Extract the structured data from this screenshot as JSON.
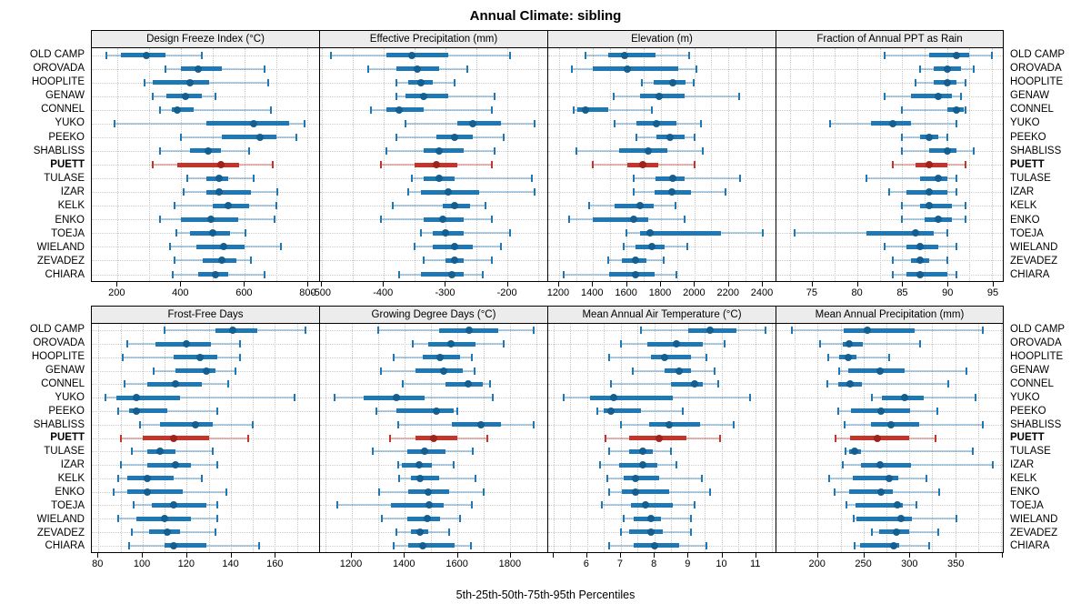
{
  "title": "Annual Climate: sibling",
  "caption": "5th-25th-50th-75th-95th Percentiles",
  "stations": [
    "OLD CAMP",
    "OROVADA",
    "HOOPLITE",
    "GENAW",
    "CONNEL",
    "YUKO",
    "PEEKO",
    "SHABLISS",
    "PUETT",
    "TULASE",
    "IZAR",
    "KELK",
    "ENKO",
    "TOEJA",
    "WIELAND",
    "ZEVADEZ",
    "CHIARA"
  ],
  "highlight_station": "PUETT",
  "colors": {
    "series_line": "#1f77b4",
    "series_pale": "rgba(31,119,180,0.35)",
    "series_dot": "#155f90",
    "highlight_line": "#c3352b",
    "highlight_pale": "rgba(195,53,43,0.35)",
    "highlight_dot": "#9e231b",
    "strip_bg": "#ececec",
    "grid": "#c8c8c8",
    "border": "#000000"
  },
  "chart_data": {
    "type": "trellis-percentile-dotplot",
    "percentiles": [
      5,
      25,
      50,
      75,
      95
    ],
    "legend_note": "thin pale line = 5th-95th, thick line = 25th-75th, dot = median",
    "panels": [
      {
        "id": "dfi",
        "row": 0,
        "title": "Design Freeze Index (°C)",
        "domain": [
          119,
          836
        ],
        "grid_step": 100,
        "ticks": [
          200,
          400,
          600,
          800
        ],
        "tick_labels": [
          "200",
          "400",
          "600",
          "800"
        ],
        "values": [
          [
            165,
            210,
            290,
            350,
            465
          ],
          [
            350,
            400,
            455,
            530,
            665
          ],
          [
            285,
            310,
            430,
            490,
            675
          ],
          [
            310,
            355,
            415,
            465,
            510
          ],
          [
            335,
            370,
            390,
            440,
            685
          ],
          [
            190,
            480,
            630,
            740,
            790
          ],
          [
            400,
            530,
            650,
            700,
            765
          ],
          [
            335,
            430,
            485,
            525,
            615
          ],
          [
            310,
            390,
            525,
            585,
            690
          ],
          [
            420,
            480,
            520,
            550,
            630
          ],
          [
            410,
            480,
            520,
            620,
            705
          ],
          [
            380,
            500,
            550,
            615,
            700
          ],
          [
            335,
            400,
            495,
            580,
            695
          ],
          [
            385,
            430,
            500,
            555,
            605
          ],
          [
            365,
            450,
            535,
            600,
            715
          ],
          [
            380,
            470,
            530,
            575,
            620
          ],
          [
            375,
            455,
            510,
            550,
            665
          ]
        ]
      },
      {
        "id": "effppt",
        "row": 0,
        "title": "Effective Precipitation (mm)",
        "domain": [
          -503,
          -135
        ],
        "grid_step": 50,
        "ticks": [
          -500,
          -400,
          -300,
          -200
        ],
        "tick_labels": [
          "-500",
          "-400",
          "-300",
          "-200"
        ],
        "values": [
          [
            -485,
            -395,
            -355,
            -295,
            -195
          ],
          [
            -425,
            -380,
            -345,
            -310,
            -265
          ],
          [
            -380,
            -360,
            -340,
            -320,
            -285
          ],
          [
            -380,
            -365,
            -335,
            -295,
            -220
          ],
          [
            -420,
            -395,
            -375,
            -335,
            -225
          ],
          [
            -365,
            -280,
            -255,
            -210,
            -155
          ],
          [
            -380,
            -315,
            -285,
            -255,
            -205
          ],
          [
            -395,
            -335,
            -310,
            -270,
            -220
          ],
          [
            -405,
            -350,
            -315,
            -280,
            -225
          ],
          [
            -355,
            -335,
            -310,
            -285,
            -160
          ],
          [
            -360,
            -340,
            -295,
            -245,
            -155
          ],
          [
            -385,
            -305,
            -285,
            -260,
            -235
          ],
          [
            -405,
            -335,
            -305,
            -270,
            -225
          ],
          [
            -340,
            -320,
            -300,
            -270,
            -195
          ],
          [
            -350,
            -320,
            -285,
            -255,
            -210
          ],
          [
            -335,
            -300,
            -285,
            -270,
            -225
          ],
          [
            -375,
            -340,
            -290,
            -270,
            -240
          ]
        ]
      },
      {
        "id": "elev",
        "row": 0,
        "title": "Elevation (m)",
        "domain": [
          1136,
          2480
        ],
        "grid_step": 100,
        "ticks": [
          1200,
          1400,
          1600,
          1800,
          2000,
          2200,
          2400
        ],
        "tick_labels": [
          "1200",
          "1400",
          "1600",
          "1800",
          "2000",
          "2200",
          "2400"
        ],
        "values": [
          [
            1355,
            1490,
            1590,
            1770,
            1970
          ],
          [
            1275,
            1400,
            1605,
            1905,
            2010
          ],
          [
            1690,
            1760,
            1875,
            1950,
            1995
          ],
          [
            1525,
            1680,
            1790,
            1940,
            2265
          ],
          [
            1285,
            1310,
            1355,
            1490,
            1750
          ],
          [
            1530,
            1655,
            1775,
            1895,
            2040
          ],
          [
            1660,
            1775,
            1855,
            1945,
            2000
          ],
          [
            1305,
            1555,
            1730,
            1840,
            2050
          ],
          [
            1400,
            1605,
            1695,
            1785,
            2000
          ],
          [
            1640,
            1770,
            1875,
            1945,
            2270
          ],
          [
            1640,
            1765,
            1865,
            1980,
            2185
          ],
          [
            1380,
            1530,
            1680,
            1760,
            1890
          ],
          [
            1260,
            1400,
            1640,
            1730,
            1940
          ],
          [
            1600,
            1680,
            1740,
            2160,
            2405
          ],
          [
            1580,
            1650,
            1750,
            1825,
            1960
          ],
          [
            1490,
            1570,
            1650,
            1715,
            1820
          ],
          [
            1225,
            1495,
            1650,
            1765,
            1895
          ]
        ]
      },
      {
        "id": "fracrain",
        "row": 0,
        "title": "Fraction of Annual PPT as Rain",
        "domain": [
          71,
          96.2
        ],
        "grid_step": 2.5,
        "ticks": [
          75,
          80,
          85,
          90,
          95
        ],
        "tick_labels": [
          "75",
          "80",
          "85",
          "90",
          "95"
        ],
        "values": [
          [
            83,
            88,
            91,
            92.5,
            95
          ],
          [
            87,
            88.5,
            90,
            91.5,
            93
          ],
          [
            86.5,
            88.5,
            90,
            91,
            92
          ],
          [
            83,
            86,
            89,
            90.5,
            91.5
          ],
          [
            85,
            90,
            91,
            91.8,
            92.1
          ],
          [
            77,
            81.5,
            84,
            86,
            91
          ],
          [
            85,
            87,
            88,
            89,
            90
          ],
          [
            85,
            88,
            90,
            91,
            93
          ],
          [
            84,
            86.5,
            88,
            90,
            92
          ],
          [
            81,
            87,
            89,
            90,
            91
          ],
          [
            83.5,
            85.5,
            88,
            90,
            91
          ],
          [
            85,
            87,
            88,
            90.5,
            92
          ],
          [
            85,
            87.5,
            89,
            90.5,
            92
          ],
          [
            73,
            81,
            86.5,
            88.5,
            90
          ],
          [
            83,
            85.5,
            87,
            89,
            91
          ],
          [
            84,
            86,
            87,
            88,
            90
          ],
          [
            84,
            85.5,
            87,
            90,
            91
          ]
        ]
      },
      {
        "id": "ffd",
        "row": 1,
        "title": "Frost-Free Days",
        "domain": [
          77,
          180
        ],
        "grid_step": 10,
        "ticks": [
          80,
          100,
          120,
          140,
          160
        ],
        "tick_labels": [
          "80",
          "100",
          "120",
          "140",
          "160"
        ],
        "values": [
          [
            110,
            133,
            141,
            152,
            174
          ],
          [
            93,
            106,
            120,
            131,
            144
          ],
          [
            91,
            114,
            126,
            134,
            144
          ],
          [
            105,
            115,
            129,
            133,
            142
          ],
          [
            92,
            102,
            115,
            127,
            139
          ],
          [
            83,
            88,
            97,
            117,
            169
          ],
          [
            89,
            94,
            97,
            111,
            134
          ],
          [
            99,
            108,
            124,
            132,
            150
          ],
          [
            90,
            100,
            114,
            130,
            148
          ],
          [
            95,
            102,
            108,
            115,
            132
          ],
          [
            90,
            102,
            115,
            122,
            134
          ],
          [
            89,
            93,
            102,
            114,
            127
          ],
          [
            87,
            93,
            102,
            118,
            138
          ],
          [
            96,
            104,
            114,
            129,
            134
          ],
          [
            89,
            97,
            110,
            122,
            134
          ],
          [
            95,
            103,
            111,
            117,
            133
          ],
          [
            94,
            110,
            114,
            129,
            153
          ]
        ]
      },
      {
        "id": "gdd",
        "row": 1,
        "title": "Growing Degree Days (°C)",
        "domain": [
          1080,
          1941
        ],
        "grid_step": 100,
        "ticks": [
          1200,
          1400,
          1600,
          1800
        ],
        "tick_labels": [
          "1200",
          "1400",
          "1600",
          "1800"
        ],
        "values": [
          [
            1300,
            1530,
            1645,
            1755,
            1890
          ],
          [
            1430,
            1490,
            1575,
            1670,
            1775
          ],
          [
            1360,
            1470,
            1535,
            1610,
            1655
          ],
          [
            1310,
            1440,
            1550,
            1620,
            1665
          ],
          [
            1395,
            1555,
            1640,
            1695,
            1725
          ],
          [
            1135,
            1245,
            1370,
            1475,
            1735
          ],
          [
            1295,
            1370,
            1520,
            1585,
            1600
          ],
          [
            1375,
            1580,
            1690,
            1765,
            1890
          ],
          [
            1345,
            1440,
            1510,
            1600,
            1715
          ],
          [
            1280,
            1410,
            1475,
            1555,
            1660
          ],
          [
            1375,
            1390,
            1455,
            1505,
            1585
          ],
          [
            1380,
            1425,
            1460,
            1530,
            1670
          ],
          [
            1305,
            1415,
            1490,
            1570,
            1700
          ],
          [
            1145,
            1350,
            1495,
            1550,
            1655
          ],
          [
            1315,
            1410,
            1485,
            1535,
            1610
          ],
          [
            1370,
            1425,
            1460,
            1490,
            1570
          ],
          [
            1360,
            1415,
            1470,
            1590,
            1650
          ]
        ]
      },
      {
        "id": "mat",
        "row": 1,
        "title": "Mean Annual Air Temperature (°C)",
        "domain": [
          4.85,
          11.6
        ],
        "grid_step": 0.5,
        "ticks": [
          5,
          6,
          7,
          8,
          9,
          10,
          11
        ],
        "tick_labels": [
          "",
          "6",
          "7",
          "8",
          "9",
          "10",
          "11"
        ],
        "values": [
          [
            7.6,
            9.0,
            9.65,
            10.45,
            11.3
          ],
          [
            7.0,
            7.8,
            8.65,
            9.45,
            10.1
          ],
          [
            6.65,
            7.9,
            8.3,
            9.1,
            9.55
          ],
          [
            7.35,
            8.3,
            8.75,
            9.1,
            9.8
          ],
          [
            6.7,
            8.5,
            9.2,
            9.45,
            9.9
          ],
          [
            5.3,
            6.1,
            6.8,
            8.55,
            10.85
          ],
          [
            6.3,
            6.5,
            6.7,
            7.6,
            8.85
          ],
          [
            7.0,
            7.85,
            8.45,
            9.35,
            10.35
          ],
          [
            6.55,
            7.25,
            8.15,
            8.95,
            9.95
          ],
          [
            6.65,
            7.25,
            7.65,
            7.95,
            8.5
          ],
          [
            6.4,
            6.95,
            7.65,
            8.1,
            8.65
          ],
          [
            6.6,
            7.1,
            7.45,
            8.15,
            9.4
          ],
          [
            6.65,
            7.05,
            7.45,
            8.45,
            9.65
          ],
          [
            6.45,
            7.3,
            7.75,
            8.55,
            9.2
          ],
          [
            7.1,
            7.4,
            7.9,
            8.2,
            9.1
          ],
          [
            7.0,
            7.25,
            7.9,
            8.25,
            9.1
          ],
          [
            6.65,
            7.4,
            8.0,
            8.75,
            9.55
          ]
        ]
      },
      {
        "id": "map",
        "row": 1,
        "title": "Mean Annual Precipitation (mm)",
        "domain": [
          155,
          402
        ],
        "grid_step": 25,
        "ticks": [
          200,
          250,
          300,
          350,
          400
        ],
        "tick_labels": [
          "200",
          "250",
          "300",
          "350",
          ""
        ],
        "values": [
          [
            172,
            228,
            254,
            306,
            380
          ],
          [
            203,
            227,
            234,
            249,
            312
          ],
          [
            212,
            223,
            233,
            242,
            278
          ],
          [
            223,
            233,
            268,
            295,
            362
          ],
          [
            211,
            222,
            235,
            248,
            342
          ],
          [
            259,
            270,
            295,
            316,
            372
          ],
          [
            222,
            236,
            269,
            301,
            331
          ],
          [
            229,
            258,
            280,
            311,
            380
          ],
          [
            219,
            235,
            265,
            300,
            329
          ],
          [
            230,
            234,
            240,
            247,
            369
          ],
          [
            227,
            247,
            268,
            302,
            391
          ],
          [
            213,
            238,
            278,
            288,
            319
          ],
          [
            218,
            234,
            269,
            282,
            333
          ],
          [
            231,
            241,
            287,
            293,
            308
          ],
          [
            239,
            242,
            291,
            303,
            351
          ],
          [
            259,
            267,
            286,
            300,
            332
          ],
          [
            240,
            246,
            283,
            289,
            322
          ]
        ]
      }
    ]
  }
}
